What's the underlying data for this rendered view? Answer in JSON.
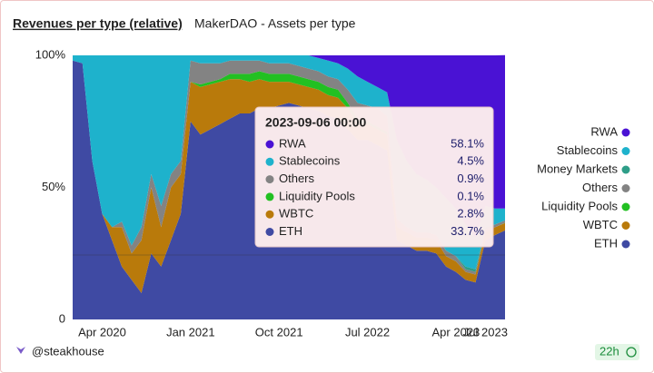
{
  "header": {
    "active_tab": "Revenues per type (relative)",
    "tab": "MakerDAO - Assets per type"
  },
  "footer": {
    "author": "@steakhouse",
    "age": "22h"
  },
  "chart_data": {
    "type": "stacked_area",
    "legend": "right",
    "x": [
      "2020-01",
      "2020-02",
      "2020-03",
      "2020-04",
      "2020-05",
      "2020-06",
      "2020-07",
      "2020-08",
      "2020-09",
      "2020-10",
      "2020-11",
      "2020-12",
      "2021-01",
      "2021-02",
      "2021-03",
      "2021-04",
      "2021-05",
      "2021-06",
      "2021-07",
      "2021-08",
      "2021-09",
      "2021-10",
      "2021-11",
      "2021-12",
      "2022-01",
      "2022-02",
      "2022-03",
      "2022-04",
      "2022-05",
      "2022-06",
      "2022-07",
      "2022-08",
      "2022-09",
      "2022-10",
      "2022-11",
      "2022-12",
      "2023-01",
      "2023-02",
      "2023-03",
      "2023-04",
      "2023-05",
      "2023-06",
      "2023-07",
      "2023-08",
      "2023-09"
    ],
    "xlim": [
      "2020-01",
      "2023-09"
    ],
    "xticks": [
      {
        "value": "2020-04",
        "label": "Apr 2020"
      },
      {
        "value": "2021-01",
        "label": "Jan 2021"
      },
      {
        "value": "2021-10",
        "label": "Oct 2021"
      },
      {
        "value": "2022-07",
        "label": "Jul 2022"
      },
      {
        "value": "2023-04",
        "label": "Apr 2023"
      },
      {
        "value": "2023-07",
        "label": "Jul 2023"
      }
    ],
    "ylim": [
      0,
      100
    ],
    "yticks": [
      0,
      {
        "value": 50,
        "label": "50%"
      },
      {
        "value": 100,
        "label": "100%"
      }
    ],
    "series": [
      {
        "name": "RWA",
        "color": "#4a12d4",
        "values": [
          0,
          0,
          0,
          0,
          0,
          0,
          0,
          0,
          0,
          0,
          0,
          0,
          0,
          0,
          0,
          0,
          0,
          0,
          0,
          0,
          0,
          0,
          0,
          0,
          0,
          1,
          2,
          3,
          5,
          8,
          10,
          12,
          14,
          32,
          40,
          45,
          47,
          50,
          54,
          58,
          64,
          69,
          57,
          58,
          58.1
        ]
      },
      {
        "name": "Stablecoins",
        "color": "#1eb2cc",
        "values": [
          2,
          3,
          40,
          60,
          65,
          63,
          72,
          65,
          45,
          57,
          45,
          40,
          2,
          3,
          3,
          3,
          2,
          2,
          2,
          2,
          3,
          3,
          3,
          4,
          5,
          5,
          6,
          6,
          8,
          10,
          9,
          8,
          9,
          30,
          25,
          22,
          20,
          18,
          20,
          18,
          16,
          12,
          8,
          6,
          4.5
        ]
      },
      {
        "name": "Money Markets",
        "color": "#2e9e88",
        "values": [
          0,
          0,
          0,
          0,
          0,
          0,
          0,
          0,
          0,
          0,
          0,
          0,
          0,
          0,
          0,
          0,
          0,
          0,
          0,
          0,
          0,
          0,
          0,
          0,
          0,
          0,
          0,
          0,
          0,
          0,
          0,
          0,
          0,
          0,
          0,
          0,
          0,
          0,
          0,
          0,
          1,
          1,
          1,
          0,
          0
        ]
      },
      {
        "name": "Others",
        "color": "#838383",
        "values": [
          0,
          0,
          0,
          0,
          0,
          2,
          3,
          5,
          5,
          8,
          5,
          5,
          8,
          8,
          7,
          6,
          5,
          5,
          5,
          4,
          4,
          4,
          4,
          4,
          4,
          4,
          4,
          4,
          5,
          6,
          6,
          7,
          6,
          3,
          2,
          2,
          2,
          2,
          2,
          2,
          1,
          1,
          1,
          1,
          0.9
        ]
      },
      {
        "name": "Liquidity Pools",
        "color": "#22c022",
        "values": [
          0,
          0,
          0,
          0,
          0,
          0,
          0,
          0,
          0,
          0,
          0,
          0,
          0,
          1,
          1,
          1,
          2,
          2,
          3,
          3,
          3,
          3,
          3,
          3,
          3,
          3,
          3,
          3,
          2,
          2,
          1,
          1,
          1,
          0,
          0,
          0,
          0,
          0,
          0,
          0,
          0,
          0,
          0,
          0,
          0.1
        ]
      },
      {
        "name": "WBTC",
        "color": "#b97a0b",
        "values": [
          0,
          0,
          0,
          0,
          5,
          15,
          10,
          20,
          25,
          15,
          20,
          15,
          15,
          18,
          17,
          16,
          15,
          13,
          12,
          11,
          10,
          9,
          8,
          8,
          8,
          8,
          8,
          8,
          8,
          6,
          6,
          6,
          6,
          5,
          5,
          5,
          5,
          5,
          4,
          4,
          3,
          3,
          3,
          3,
          2.8
        ]
      },
      {
        "name": "ETH",
        "color": "#3f4aa3",
        "values": [
          98,
          97,
          60,
          40,
          30,
          20,
          15,
          10,
          25,
          20,
          30,
          40,
          75,
          70,
          72,
          74,
          76,
          78,
          78,
          80,
          80,
          81,
          82,
          81,
          80,
          79,
          77,
          76,
          72,
          68,
          68,
          66,
          64,
          30,
          28,
          26,
          26,
          25,
          20,
          18,
          15,
          14,
          30,
          32,
          33.7
        ]
      }
    ],
    "tooltip": {
      "title": "2023-09-06 00:00",
      "items": [
        {
          "name": "RWA",
          "value": "58.1%"
        },
        {
          "name": "Stablecoins",
          "value": "4.5%"
        },
        {
          "name": "Others",
          "value": "0.9%"
        },
        {
          "name": "Liquidity Pools",
          "value": "0.1%"
        },
        {
          "name": "WBTC",
          "value": "2.8%"
        },
        {
          "name": "ETH",
          "value": "33.7%"
        }
      ]
    }
  }
}
